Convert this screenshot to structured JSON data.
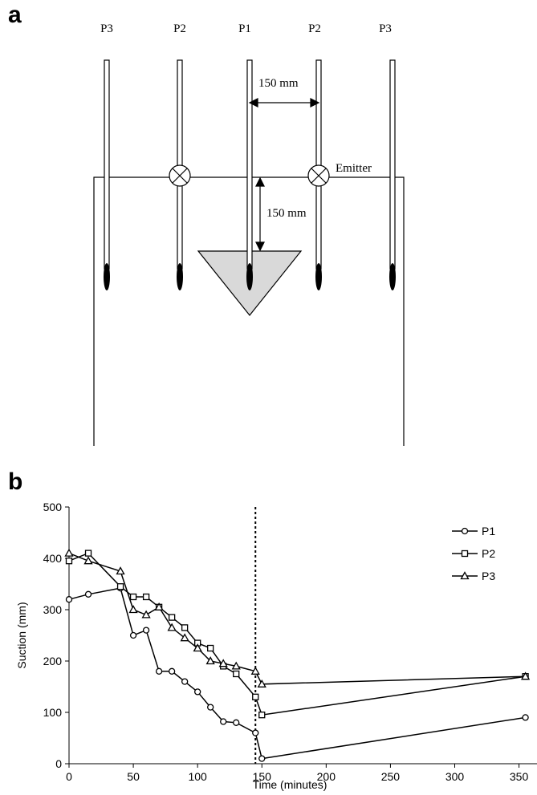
{
  "diagram": {
    "panel_label": "a",
    "probe_labels": [
      "P3",
      "P2",
      "P1",
      "P2",
      "P3"
    ],
    "spacing_label_horizontal": "150 mm",
    "spacing_label_vertical": "150 mm",
    "emitter_label": "Emitter"
  },
  "chart_data": {
    "type": "line",
    "panel_label": "b",
    "x_label": "Time (minutes)",
    "y_label": "Suction (mm)",
    "x": [
      0,
      15,
      40,
      50,
      60,
      70,
      80,
      90,
      100,
      110,
      120,
      130,
      145,
      150,
      355
    ],
    "series": [
      {
        "name": "P1",
        "marker": "circle",
        "color": "#000000",
        "values": [
          320,
          330,
          342,
          250,
          260,
          180,
          180,
          160,
          140,
          110,
          82,
          80,
          60,
          10,
          90
        ]
      },
      {
        "name": "P2",
        "marker": "square",
        "color": "#000000",
        "values": [
          395,
          410,
          345,
          325,
          325,
          305,
          285,
          265,
          235,
          225,
          190,
          175,
          130,
          95,
          170
        ]
      },
      {
        "name": "P3",
        "marker": "triangle",
        "color": "#000000",
        "values": [
          410,
          395,
          375,
          300,
          290,
          305,
          265,
          245,
          225,
          200,
          195,
          190,
          180,
          155,
          170
        ]
      }
    ],
    "vline": 145,
    "xlim": [
      0,
      364
    ],
    "ylim": [
      0,
      500
    ],
    "xticks": [
      0,
      50,
      100,
      150,
      200,
      250,
      300,
      350
    ],
    "yticks": [
      0,
      100,
      200,
      300,
      400,
      500
    ],
    "legend": "upper-right"
  }
}
